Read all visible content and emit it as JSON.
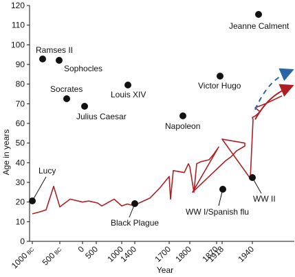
{
  "chart_data": {
    "type": "line",
    "xlabel": "Year",
    "ylabel": "Age in years",
    "ylim": [
      0,
      120
    ],
    "yticks": [
      0,
      10,
      20,
      30,
      40,
      50,
      60,
      70,
      80,
      90,
      100,
      110,
      120
    ],
    "x_tick_labels": [
      {
        "main": "1000",
        "suffix": "BC"
      },
      {
        "main": "500",
        "suffix": "BC"
      },
      {
        "main": "0",
        "suffix": ""
      },
      {
        "main": "500",
        "suffix": ""
      },
      {
        "main": "1000",
        "suffix": ""
      },
      {
        "main": "1400",
        "suffix": ""
      },
      {
        "main": "1700",
        "suffix": ""
      },
      {
        "main": "1800",
        "suffix": ""
      },
      {
        "main": "1870",
        "suffix": ""
      },
      {
        "main": "1918",
        "suffix": ""
      },
      {
        "main": "1940",
        "suffix": ""
      }
    ],
    "life_expectancy_series": {
      "color": "#b01e23",
      "x": [
        "1000 BC",
        "800 BC",
        "700 BC",
        "600 BC",
        "400 BC",
        "200 BC",
        "0",
        "200",
        "400",
        "600",
        "800",
        "1000",
        "1200",
        "1300",
        "1348",
        "1400",
        "1500",
        "1600",
        "1700",
        "1720",
        "1740",
        "1760",
        "1780",
        "1790",
        "1800",
        "1810",
        "1820",
        "1830",
        "1840",
        "1850",
        "1860",
        "1870",
        "1880",
        "1890",
        "1900",
        "1910",
        "1914",
        "1918",
        "1920",
        "1930",
        "1940",
        "1941",
        "1943",
        "1944",
        "1950",
        "1960",
        "1970",
        "1980"
      ],
      "y": [
        14,
        15,
        16,
        28,
        17.5,
        21.5,
        20,
        20.5,
        19.5,
        18,
        21.5,
        18,
        19,
        18.5,
        18.5,
        18.5,
        22,
        27,
        33,
        21.5,
        36,
        35.5,
        35,
        39.5,
        38,
        25,
        39.5,
        40.5,
        41.5,
        44,
        48,
        25,
        41,
        43,
        46,
        48.5,
        50,
        52,
        32,
        62,
        63,
        64,
        65,
        66,
        68,
        70,
        72,
        74
      ]
    },
    "projection_arrows": [
      {
        "style": "dashed",
        "color": "#2a63a6",
        "x": [
          "1950",
          "1962",
          "1975",
          "2000"
        ],
        "y": [
          67,
          77,
          83,
          87
        ]
      },
      {
        "style": "solid",
        "color": "#b01e23",
        "x": [
          "1950",
          "1962",
          "1975",
          "2000"
        ],
        "y": [
          62,
          70,
          75,
          79
        ]
      }
    ],
    "annotations": [
      {
        "label": "Lucy",
        "point": {
          "x": "1000 BC",
          "y": 19.5
        },
        "style": "below-line"
      },
      {
        "label": "Ramses II",
        "point": {
          "y": 90.5
        }
      },
      {
        "label": "Sophocles",
        "point": {
          "y": 90
        }
      },
      {
        "label": "Socrates",
        "point": {
          "y": 71
        }
      },
      {
        "label": "Julius Caesar",
        "point": {
          "y": 67.5
        }
      },
      {
        "label": "Louis XIV",
        "point": {
          "y": 77.5
        }
      },
      {
        "label": "Black Plague",
        "point": {
          "x": "1348",
          "y": 18.5
        }
      },
      {
        "label": "Napoleon",
        "point": {
          "y": 62
        }
      },
      {
        "label": "Victor Hugo",
        "point": {
          "y": 82
        }
      },
      {
        "label": "WW I/Spanish flu",
        "point": {
          "x": "1918",
          "y": 25.5
        }
      },
      {
        "label": "WW II",
        "point": {
          "x": "1940",
          "y": 31.5
        }
      },
      {
        "label": "Jeanne Calment",
        "point": {
          "y": 114
        }
      }
    ]
  }
}
